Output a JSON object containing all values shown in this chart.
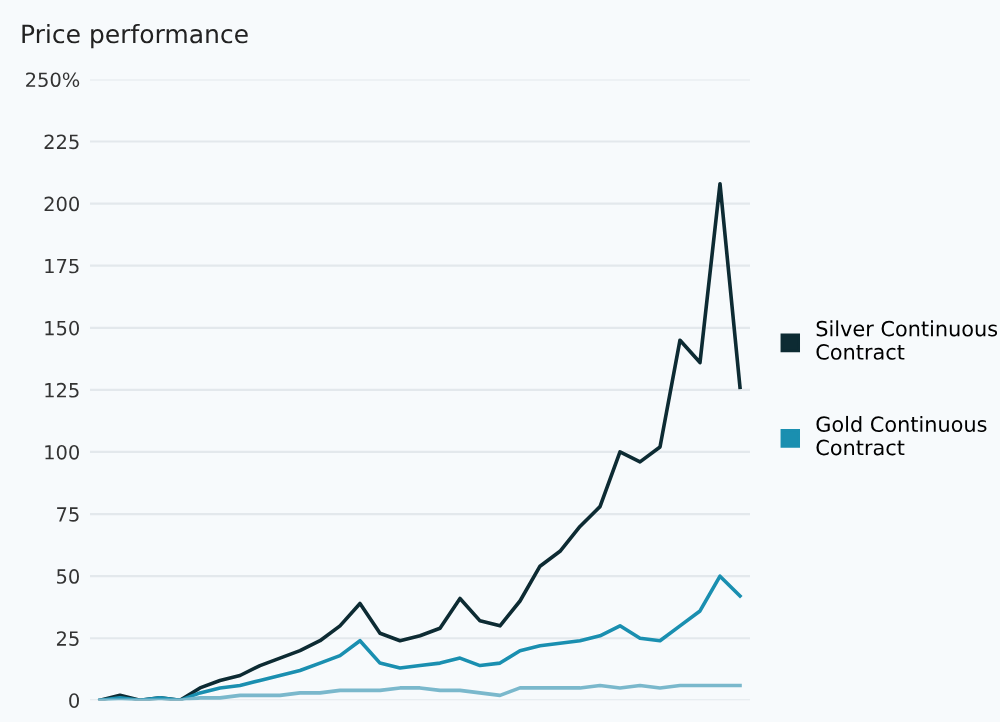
{
  "chart_data": {
    "type": "line",
    "title": "Price performance",
    "categories": [
      null,
      null,
      null,
      null,
      null,
      null,
      null,
      null,
      null,
      null,
      null,
      null,
      null,
      null,
      null,
      null,
      null,
      null,
      null,
      null,
      null,
      null,
      null,
      null,
      null,
      null,
      null,
      null,
      null,
      null,
      null,
      null,
      null
    ],
    "series": [
      {
        "name": "Silver Continuous Contract",
        "color": "#0d2b33",
        "values": [
          0,
          2,
          0,
          1,
          0,
          5,
          8,
          10,
          14,
          17,
          20,
          24,
          30,
          39,
          27,
          24,
          26,
          29,
          41,
          32,
          30,
          40,
          54,
          60,
          70,
          78,
          100,
          96,
          102,
          145,
          136,
          208,
          126
        ]
      },
      {
        "name": "Gold Continuous Contract",
        "color": "#1a8fb0",
        "values": [
          0,
          1,
          0,
          1,
          0,
          3,
          5,
          6,
          8,
          10,
          12,
          15,
          18,
          24,
          15,
          13,
          14,
          15,
          17,
          14,
          15,
          20,
          22,
          23,
          24,
          26,
          30,
          25,
          24,
          30,
          36,
          50,
          42
        ]
      },
      {
        "color": "#7ab8cc",
        "values": [
          0,
          0,
          0,
          0,
          0,
          1,
          1,
          2,
          2,
          2,
          3,
          3,
          4,
          4,
          4,
          5,
          5,
          4,
          4,
          3,
          2,
          5,
          5,
          5,
          5,
          6,
          5,
          6,
          5,
          6,
          6,
          6,
          6
        ]
      }
    ],
    "ylim": [
      0,
      250
    ],
    "yticks": [
      0,
      25,
      50,
      75,
      100,
      125,
      150,
      175,
      200,
      225,
      {
        "value": 250,
        "label": "250%"
      }
    ],
    "grid": "y",
    "legend": "right",
    "tick_labels": "y"
  }
}
